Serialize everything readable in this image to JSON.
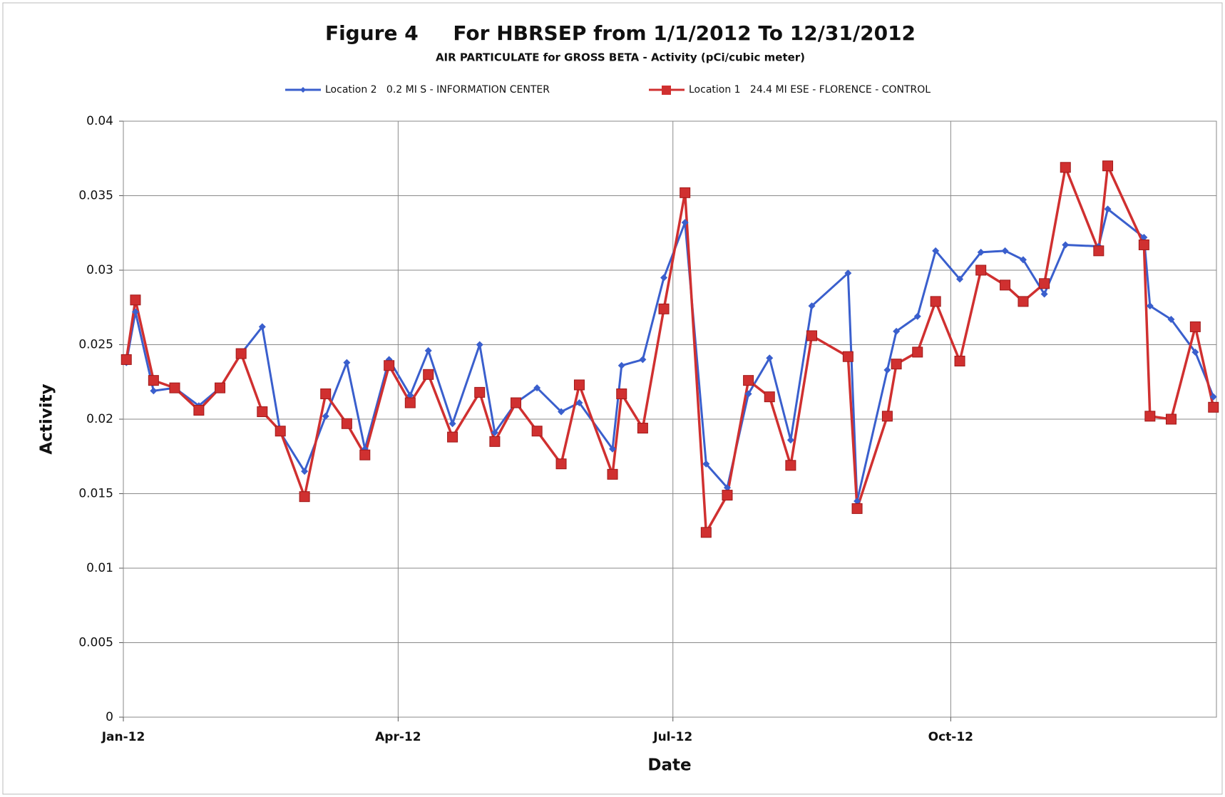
{
  "chart_data": {
    "type": "line",
    "title": "Figure 4     For HBRSEP from 1/1/2012 To 12/31/2012",
    "subtitle": "AIR PARTICULATE for GROSS BETA - Activity (pCi/cubic meter)",
    "x_label": "Date",
    "y_label": "Activity",
    "x": [
      1,
      4,
      10,
      17,
      25,
      32,
      39,
      46,
      52,
      60,
      67,
      74,
      80,
      88,
      95,
      101,
      109,
      118,
      123,
      130,
      137,
      145,
      151,
      162,
      165,
      172,
      179,
      186,
      193,
      200,
      207,
      214,
      221,
      228,
      240,
      243,
      253,
      256,
      263,
      269,
      277,
      284,
      292,
      298,
      305,
      312,
      323,
      326,
      338,
      340,
      347,
      355,
      361
    ],
    "xlim": [
      0,
      362
    ],
    "xticks": [
      {
        "value": 0,
        "label": "Jan-12"
      },
      {
        "value": 91,
        "label": "Apr-12"
      },
      {
        "value": 182,
        "label": "Jul-12"
      },
      {
        "value": 274,
        "label": "Oct-12"
      }
    ],
    "ylim": [
      0,
      0.04
    ],
    "yticks": [
      0,
      0.005,
      0.01,
      0.015,
      0.02,
      0.025,
      0.03,
      0.035,
      0.04
    ],
    "grid": true,
    "series": [
      {
        "name": "Location 2   0.2 MI S - INFORMATION CENTER",
        "color": "#3a5fcd",
        "marker": "diamond",
        "values": [
          0.0238,
          0.0272,
          0.0219,
          0.0221,
          0.0209,
          0.0221,
          0.0244,
          0.0262,
          0.0191,
          0.0165,
          0.0202,
          0.0238,
          0.018,
          0.024,
          0.0216,
          0.0246,
          0.0197,
          0.025,
          0.0191,
          0.0211,
          0.0221,
          0.0205,
          0.0211,
          0.018,
          0.0236,
          0.024,
          0.0295,
          0.0332,
          0.017,
          0.0154,
          0.0217,
          0.0241,
          0.0186,
          0.0276,
          0.0298,
          0.0145,
          0.0233,
          0.0259,
          0.0269,
          0.0313,
          0.0294,
          0.0312,
          0.0313,
          0.0307,
          0.0284,
          0.0317,
          0.0316,
          0.0341,
          0.0322,
          0.0276,
          0.0267,
          0.0245,
          0.0215
        ]
      },
      {
        "name": "Location 1   24.4 MI ESE - FLORENCE - CONTROL",
        "color": "#d03030",
        "marker": "square",
        "values": [
          0.024,
          0.028,
          0.0226,
          0.0221,
          0.0206,
          0.0221,
          0.0244,
          0.0205,
          0.0192,
          0.0148,
          0.0217,
          0.0197,
          0.0176,
          0.0236,
          0.0211,
          0.023,
          0.0188,
          0.0218,
          0.0185,
          0.0211,
          0.0192,
          0.017,
          0.0223,
          0.0163,
          0.0217,
          0.0194,
          0.0274,
          0.0352,
          0.0124,
          0.0149,
          0.0226,
          0.0215,
          0.0169,
          0.0256,
          0.0242,
          0.014,
          0.0202,
          0.0237,
          0.0245,
          0.0279,
          0.0239,
          0.03,
          0.029,
          0.0279,
          0.0291,
          0.0369,
          0.0313,
          0.037,
          0.0317,
          0.0202,
          0.02,
          0.0262,
          0.0208
        ]
      }
    ]
  }
}
